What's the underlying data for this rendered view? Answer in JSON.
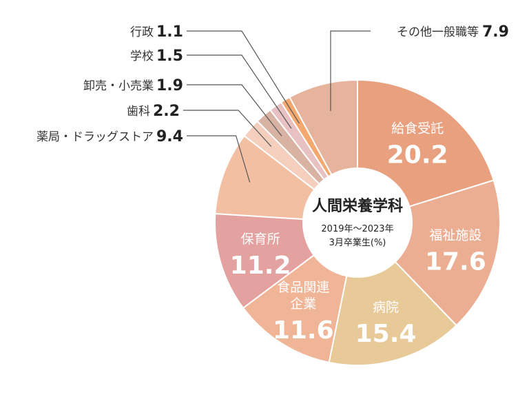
{
  "chart_data": {
    "type": "pie",
    "donut": true,
    "center_title": "人間栄養学科",
    "center_subtitle": [
      "2019年〜2023年",
      "3月卒業生(%)"
    ],
    "slices": [
      {
        "label": "給食受託",
        "value": 20.2,
        "color": "#e9a07f",
        "label_inside": true,
        "label_lines": [
          "給食受託"
        ]
      },
      {
        "label": "福祉施設",
        "value": 17.6,
        "color": "#ecae93",
        "label_inside": true,
        "label_lines": [
          "福祉施設"
        ]
      },
      {
        "label": "病院",
        "value": 15.4,
        "color": "#e8c998",
        "label_inside": true,
        "label_lines": [
          "病院"
        ]
      },
      {
        "label": "食品関連企業",
        "value": 11.6,
        "color": "#f0b496",
        "label_inside": true,
        "label_lines": [
          "食品関連",
          "企業"
        ]
      },
      {
        "label": "保育所",
        "value": 11.2,
        "color": "#e3a19f",
        "label_inside": true,
        "label_lines": [
          "保育所"
        ]
      },
      {
        "label": "薬局・ドラッグストア",
        "value": 9.4,
        "color": "#f3bfa2",
        "label_inside": false
      },
      {
        "label": "歯科",
        "value": 2.2,
        "color": "#f4cfbe",
        "label_inside": false
      },
      {
        "label": "卸売・小売業",
        "value": 1.9,
        "color": "#d8b3a3",
        "label_inside": false
      },
      {
        "label": "学校",
        "value": 1.5,
        "color": "#e8c2c2",
        "label_inside": false
      },
      {
        "label": "行政",
        "value": 1.1,
        "color": "#f2a86e",
        "label_inside": false
      },
      {
        "label": "その他一般職等",
        "value": 7.9,
        "color": "#e6b39d",
        "label_inside": false
      }
    ]
  }
}
